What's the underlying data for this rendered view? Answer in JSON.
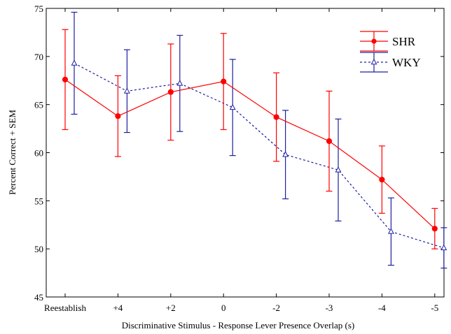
{
  "chart_data": {
    "type": "line",
    "title": "",
    "xlabel": "Discriminative Stimulus - Response Lever Presence Overlap (s)",
    "ylabel": "Percent Correct + SEM",
    "categories": [
      "Reestablish",
      "+4",
      "+2",
      "0",
      "-2",
      "-3",
      "-4",
      "-5"
    ],
    "ylim": [
      45,
      75
    ],
    "yticks": [
      45,
      50,
      55,
      60,
      65,
      70,
      75
    ],
    "grid": false,
    "legend_position": "top-right",
    "series": [
      {
        "name": "SHR",
        "color": "#ff0000",
        "line_style": "solid",
        "marker": "filled-circle",
        "values": [
          67.6,
          63.8,
          66.3,
          67.4,
          63.7,
          61.2,
          57.2,
          52.1
        ],
        "errors": [
          5.2,
          4.2,
          5.0,
          5.0,
          4.6,
          5.2,
          3.5,
          2.1
        ]
      },
      {
        "name": "WKY",
        "color": "#1f1fa0",
        "line_style": "dashed",
        "marker": "open-triangle",
        "values": [
          69.3,
          66.4,
          67.2,
          64.7,
          59.8,
          58.2,
          51.8,
          50.1
        ],
        "errors": [
          5.3,
          4.3,
          5.0,
          5.0,
          4.6,
          5.3,
          3.5,
          2.1
        ]
      }
    ]
  }
}
